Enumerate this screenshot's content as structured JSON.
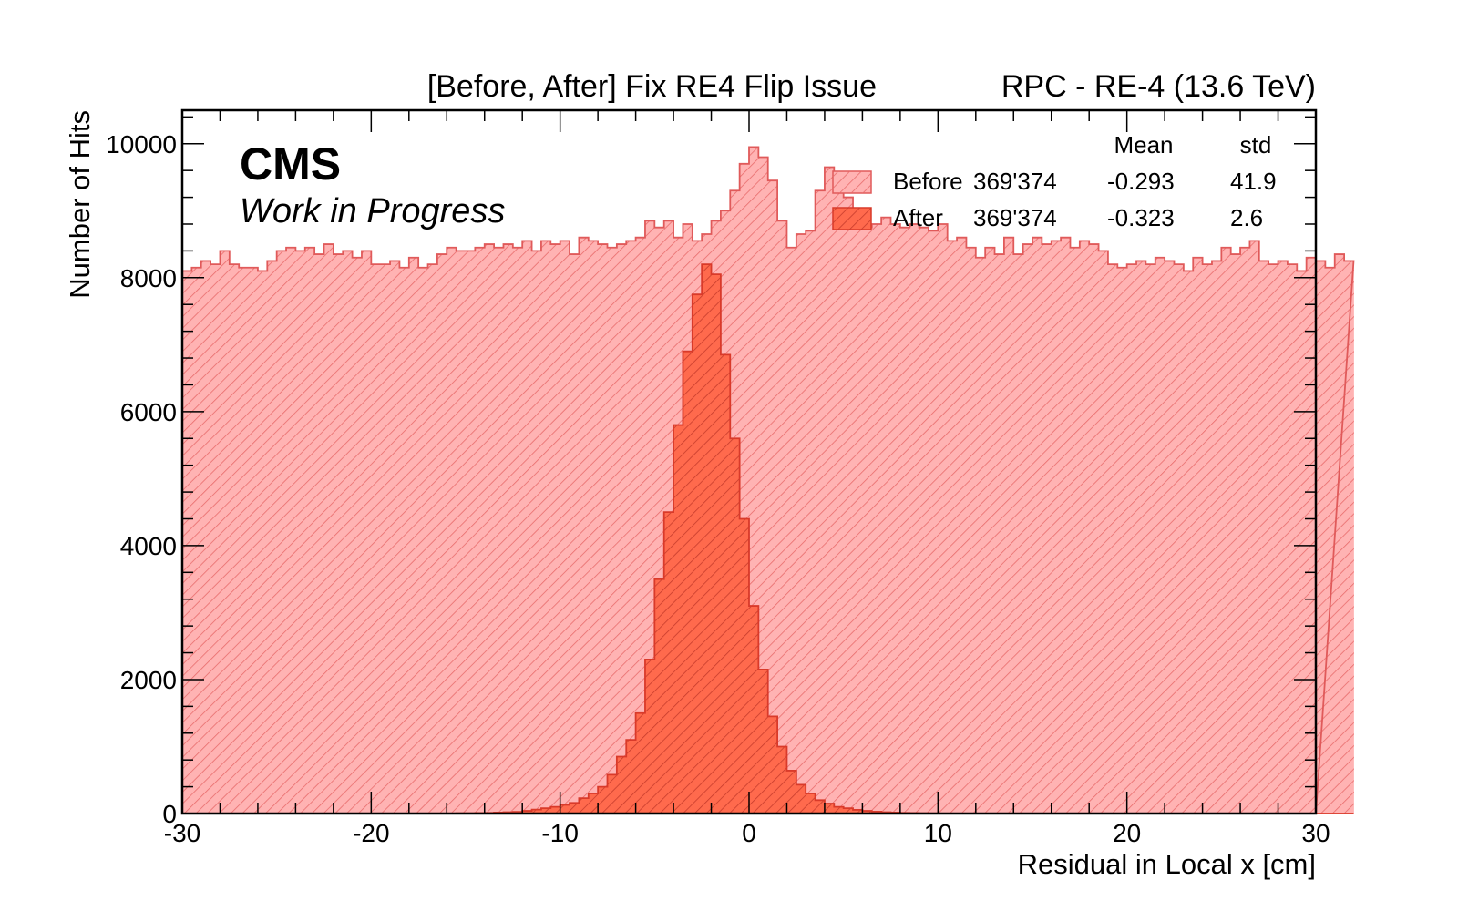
{
  "chart_data": {
    "type": "bar",
    "title_left": "[Before, After] Fix RE4 Flip Issue",
    "title_right": "RPC - RE-4 (13.6 TeV)",
    "experiment": "CMS",
    "status": "Work in Progress",
    "xlabel": "Residual in Local x [cm]",
    "ylabel": "Number of Hits",
    "xlim": [
      -30,
      30
    ],
    "ylim": [
      0,
      10500
    ],
    "x_ticks": [
      -30,
      -20,
      -10,
      0,
      10,
      20,
      30
    ],
    "y_ticks": [
      0,
      2000,
      4000,
      6000,
      8000,
      10000
    ],
    "bin_width": 0.5,
    "legend": {
      "header_mean": "Mean",
      "header_std": "std",
      "entries": [
        {
          "label": "Before",
          "entries": "369'374",
          "mean": "-0.293",
          "std": "41.9"
        },
        {
          "label": "After",
          "entries": "369'374",
          "mean": "-0.323",
          "std": "2.6"
        }
      ]
    },
    "colors": {
      "before_fill": "#ffb3b3",
      "before_line": "#e05a5a",
      "before_hatch": "#e86b6b",
      "after_fill": "#ff6a4d",
      "after_line": "#d93a2a",
      "after_hatch": "#c63b2b"
    },
    "series": [
      {
        "name": "Before",
        "values": [
          8100,
          8150,
          8250,
          8200,
          8400,
          8200,
          8150,
          8150,
          8100,
          8250,
          8400,
          8450,
          8400,
          8450,
          8350,
          8500,
          8350,
          8400,
          8300,
          8400,
          8200,
          8200,
          8250,
          8150,
          8300,
          8150,
          8200,
          8350,
          8450,
          8400,
          8400,
          8450,
          8500,
          8450,
          8500,
          8450,
          8550,
          8400,
          8550,
          8500,
          8550,
          8350,
          8600,
          8550,
          8500,
          8450,
          8500,
          8550,
          8600,
          8850,
          8750,
          8850,
          8600,
          8800,
          8550,
          8650,
          8850,
          9000,
          9300,
          9700,
          9950,
          9800,
          9450,
          8850,
          8450,
          8650,
          8700,
          9300,
          9650,
          9500,
          9200,
          8900,
          8750,
          8800,
          8900,
          8800,
          8750,
          8800,
          8750,
          8700,
          8800,
          8550,
          8600,
          8450,
          8300,
          8450,
          8350,
          8600,
          8350,
          8500,
          8600,
          8500,
          8550,
          8600,
          8450,
          8550,
          8500,
          8400,
          8200,
          8150,
          8200,
          8250,
          8200,
          8300,
          8250,
          8200,
          8100,
          8300,
          8200,
          8250,
          8450,
          8350,
          8450,
          8550,
          8250,
          8200,
          8250,
          8200,
          8100,
          8300,
          8250,
          8150,
          8350,
          8250
        ]
      },
      {
        "name": "After",
        "values": [
          0,
          0,
          0,
          0,
          0,
          0,
          0,
          0,
          0,
          0,
          0,
          0,
          0,
          0,
          0,
          0,
          0,
          0,
          0,
          0,
          0,
          0,
          0,
          0,
          0,
          0,
          0,
          0,
          0,
          5,
          5,
          8,
          10,
          15,
          20,
          25,
          40,
          60,
          80,
          100,
          130,
          160,
          230,
          300,
          400,
          580,
          850,
          1100,
          1500,
          2300,
          3500,
          4500,
          5800,
          6900,
          7750,
          8200,
          8050,
          6850,
          5600,
          4400,
          3100,
          2150,
          1450,
          1000,
          640,
          430,
          300,
          200,
          150,
          100,
          80,
          55,
          40,
          28,
          20,
          15,
          10,
          8,
          5,
          3,
          2,
          0,
          0,
          0,
          0,
          0,
          0,
          0,
          0,
          0,
          0,
          0,
          0,
          0,
          0,
          0,
          0,
          0,
          0,
          0,
          0,
          0,
          0,
          0,
          0,
          0,
          0,
          0,
          0,
          0,
          0,
          0,
          0,
          0,
          0,
          0,
          0,
          0,
          0,
          0,
          0,
          0,
          0,
          0
        ]
      }
    ]
  }
}
